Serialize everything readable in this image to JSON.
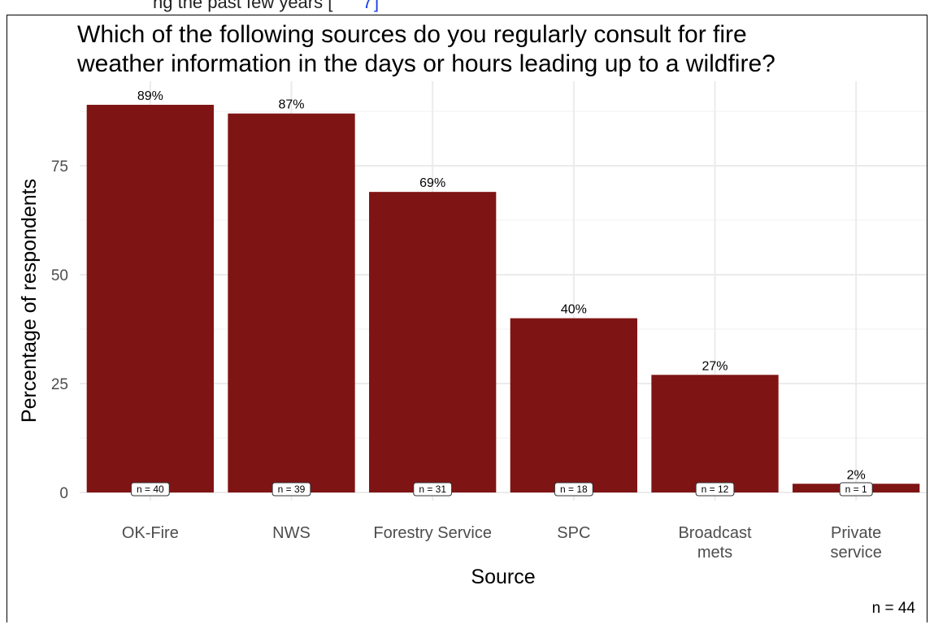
{
  "header_fragment": {
    "text_dark": "ng the past few years [",
    "text_blue": "7",
    "text_blue2": "]"
  },
  "chart_data": {
    "type": "bar",
    "title_line1": "Which of the following sources do you regularly consult for fire",
    "title_line2": "weather information in the days or hours leading up to a wildfire?",
    "xlabel": "Source",
    "ylabel": "Percentage of respondents",
    "categories": [
      [
        "OK-Fire"
      ],
      [
        "NWS"
      ],
      [
        "Forestry Service"
      ],
      [
        "SPC"
      ],
      [
        "Broadcast",
        "mets"
      ],
      [
        "Private",
        "service"
      ]
    ],
    "values": [
      89,
      87,
      69,
      40,
      27,
      2
    ],
    "value_labels": [
      "89%",
      "87%",
      "69%",
      "40%",
      "27%",
      "2%"
    ],
    "count_labels": [
      "n = 40",
      "n = 39",
      "n = 31",
      "n = 18",
      "n = 12",
      "n = 1"
    ],
    "yticks": [
      0,
      25,
      50,
      75
    ],
    "ylim": [
      0,
      93
    ],
    "bar_color": "#7f1414",
    "grid": true,
    "caption": "n = 44"
  }
}
